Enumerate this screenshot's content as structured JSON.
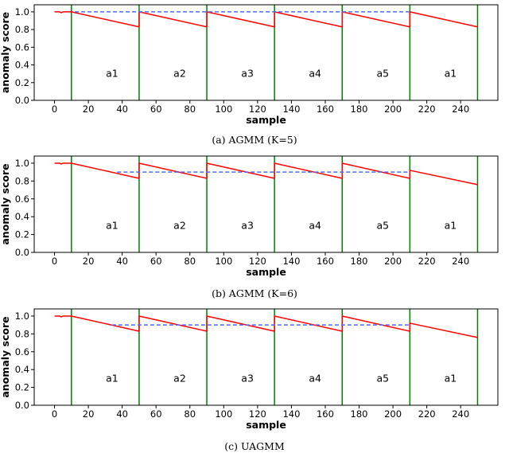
{
  "chart_data": [
    {
      "type": "line",
      "caption": "(a)  AGMM (K=5)",
      "xlabel": "sample",
      "ylabel": "anomaly score",
      "xlim": [
        -12,
        262
      ],
      "ylim": [
        0,
        1.08
      ],
      "xticks": [
        0,
        20,
        40,
        60,
        80,
        100,
        120,
        140,
        160,
        180,
        200,
        220,
        240
      ],
      "yticks": [
        0.0,
        0.2,
        0.4,
        0.6,
        0.8,
        1.0
      ],
      "grid": false,
      "series": [
        {
          "color": "#ff0000",
          "style": "solid",
          "x": [
            0,
            3,
            4,
            5,
            6,
            10,
            50,
            50,
            90,
            90,
            130,
            130,
            170,
            170,
            210,
            210,
            250
          ],
          "y": [
            1.0,
            1.0,
            0.99,
            1.0,
            1.0,
            1.0,
            0.83,
            1.0,
            0.83,
            1.0,
            0.83,
            1.0,
            0.83,
            1.0,
            0.83,
            1.0,
            0.83
          ]
        },
        {
          "color": "#4a6cf7",
          "style": "dashed",
          "x": [
            12,
            210
          ],
          "y": [
            1.0,
            1.0
          ]
        }
      ],
      "vlines": {
        "color": "#008000",
        "x": [
          10,
          50,
          90,
          130,
          170,
          210,
          250
        ]
      },
      "segment_labels": [
        {
          "text": "a1",
          "x": 34
        },
        {
          "text": "a2",
          "x": 74
        },
        {
          "text": "a3",
          "x": 114
        },
        {
          "text": "a4",
          "x": 154
        },
        {
          "text": "a5",
          "x": 194
        },
        {
          "text": "a1",
          "x": 234
        }
      ],
      "segment_label_y": 0.3
    },
    {
      "type": "line",
      "caption": "(b)  AGMM (K=6)",
      "xlabel": "sample",
      "ylabel": "anomaly score",
      "xlim": [
        -12,
        262
      ],
      "ylim": [
        0,
        1.08
      ],
      "xticks": [
        0,
        20,
        40,
        60,
        80,
        100,
        120,
        140,
        160,
        180,
        200,
        220,
        240
      ],
      "yticks": [
        0.0,
        0.2,
        0.4,
        0.6,
        0.8,
        1.0
      ],
      "grid": false,
      "series": [
        {
          "color": "#ff0000",
          "style": "solid",
          "x": [
            0,
            3,
            4,
            5,
            6,
            10,
            50,
            50,
            90,
            90,
            130,
            130,
            170,
            170,
            210,
            210,
            250
          ],
          "y": [
            1.0,
            1.0,
            0.99,
            1.0,
            1.0,
            1.0,
            0.83,
            1.0,
            0.83,
            1.0,
            0.83,
            1.0,
            0.83,
            1.0,
            0.83,
            0.92,
            0.76
          ]
        },
        {
          "color": "#4a6cf7",
          "style": "dashed",
          "x": [
            37,
            210
          ],
          "y": [
            0.9,
            0.9
          ]
        }
      ],
      "vlines": {
        "color": "#008000",
        "x": [
          10,
          50,
          90,
          130,
          170,
          210,
          250
        ]
      },
      "segment_labels": [
        {
          "text": "a1",
          "x": 34
        },
        {
          "text": "a2",
          "x": 74
        },
        {
          "text": "a3",
          "x": 114
        },
        {
          "text": "a4",
          "x": 154
        },
        {
          "text": "a5",
          "x": 194
        },
        {
          "text": "a1",
          "x": 234
        }
      ],
      "segment_label_y": 0.3
    },
    {
      "type": "line",
      "caption": "(c)  UAGMM",
      "xlabel": "sample",
      "ylabel": "anomaly score",
      "xlim": [
        -12,
        262
      ],
      "ylim": [
        0,
        1.08
      ],
      "xticks": [
        0,
        20,
        40,
        60,
        80,
        100,
        120,
        140,
        160,
        180,
        200,
        220,
        240
      ],
      "yticks": [
        0.0,
        0.2,
        0.4,
        0.6,
        0.8,
        1.0
      ],
      "grid": false,
      "series": [
        {
          "color": "#ff0000",
          "style": "solid",
          "x": [
            0,
            3,
            4,
            5,
            6,
            10,
            50,
            50,
            90,
            90,
            130,
            130,
            170,
            170,
            210,
            210,
            250
          ],
          "y": [
            1.0,
            1.0,
            0.99,
            1.0,
            1.0,
            1.0,
            0.83,
            1.0,
            0.83,
            1.0,
            0.83,
            1.0,
            0.83,
            1.0,
            0.83,
            0.92,
            0.76
          ]
        },
        {
          "color": "#4a6cf7",
          "style": "dashed",
          "x": [
            34,
            210
          ],
          "y": [
            0.9,
            0.9
          ]
        }
      ],
      "vlines": {
        "color": "#008000",
        "x": [
          10,
          50,
          90,
          130,
          170,
          210,
          250
        ]
      },
      "segment_labels": [
        {
          "text": "a1",
          "x": 34
        },
        {
          "text": "a2",
          "x": 74
        },
        {
          "text": "a3",
          "x": 114
        },
        {
          "text": "a4",
          "x": 154
        },
        {
          "text": "a5",
          "x": 194
        },
        {
          "text": "a1",
          "x": 234
        }
      ],
      "segment_label_y": 0.3
    }
  ]
}
